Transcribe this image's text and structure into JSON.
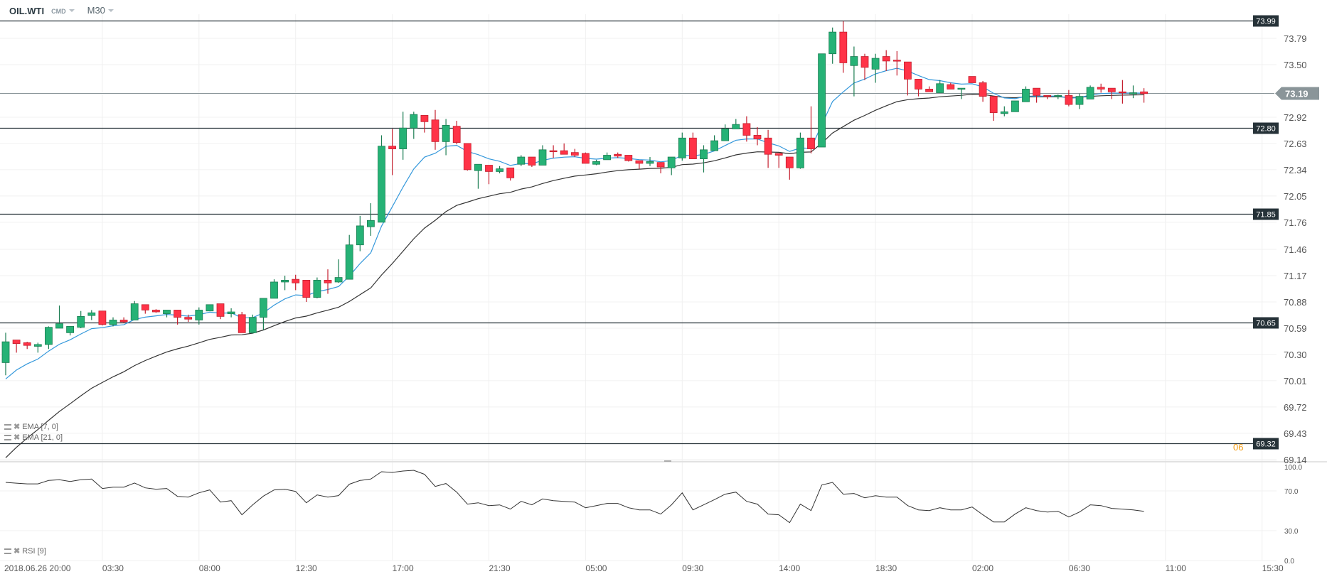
{
  "header": {
    "symbol": "OIL.WTI",
    "market": "CMD",
    "timeframe": "M30"
  },
  "indicators": [
    {
      "label": "EMA  [7, 0]",
      "color": "#3498db"
    },
    {
      "label": "EMA  [21, 0]",
      "color": "#333333"
    },
    {
      "label": "RSI  [9]",
      "color": "#333333"
    }
  ],
  "countdown": "06",
  "colors": {
    "up": "#26b276",
    "up_border": "#1b7d52",
    "down": "#ff3347",
    "down_border": "#c4202f",
    "level_line": "#263238",
    "current_tag": "#8a9599",
    "grid": "#f0f0f0"
  },
  "chart_data": {
    "type": "candlestick",
    "symbol": "OIL.WTI",
    "timeframe": "M30",
    "ylim": [
      69.115,
      74.057
    ],
    "y_ticks": [
      "73.79",
      "73.50",
      "72.92",
      "72.63",
      "72.34",
      "72.05",
      "71.76",
      "71.46",
      "71.17",
      "70.88",
      "70.59",
      "70.30",
      "70.01",
      "69.72",
      "69.43",
      "69.14"
    ],
    "x_ticks": [
      {
        "label": "2018.06.26  20:00",
        "index": 0
      },
      {
        "label": "03:30",
        "index": 9
      },
      {
        "label": "08:00",
        "index": 18
      },
      {
        "label": "12:30",
        "index": 27
      },
      {
        "label": "17:00",
        "index": 36
      },
      {
        "label": "21:30",
        "index": 45
      },
      {
        "label": "05:00",
        "index": 54
      },
      {
        "label": "09:30",
        "index": 63
      },
      {
        "label": "14:00",
        "index": 72
      },
      {
        "label": "18:30",
        "index": 81
      },
      {
        "label": "02:00",
        "index": 90
      },
      {
        "label": "06:30",
        "index": 99
      },
      {
        "label": "11:00",
        "index": 108
      },
      {
        "label": "15:30",
        "index": 117
      }
    ],
    "current_price": "73.19",
    "levels": [
      "73.99",
      "72.80",
      "71.85",
      "70.65",
      "69.32"
    ],
    "ohlc_fields": [
      "open",
      "high",
      "low",
      "close"
    ],
    "candles": [
      [
        70.21,
        70.54,
        70.07,
        70.44
      ],
      [
        70.46,
        70.46,
        70.32,
        70.42
      ],
      [
        70.43,
        70.44,
        70.36,
        70.4
      ],
      [
        70.39,
        70.43,
        70.32,
        70.41
      ],
      [
        70.41,
        70.61,
        70.36,
        70.6
      ],
      [
        70.59,
        70.84,
        70.59,
        70.64
      ],
      [
        70.54,
        70.61,
        70.51,
        70.61
      ],
      [
        70.6,
        70.78,
        70.59,
        70.72
      ],
      [
        70.73,
        70.79,
        70.68,
        70.76
      ],
      [
        70.78,
        70.78,
        70.62,
        70.63
      ],
      [
        70.63,
        70.71,
        70.61,
        70.68
      ],
      [
        70.68,
        70.71,
        70.65,
        70.66
      ],
      [
        70.68,
        70.89,
        70.68,
        70.86
      ],
      [
        70.85,
        70.85,
        70.75,
        70.79
      ],
      [
        70.79,
        70.8,
        70.76,
        70.77
      ],
      [
        70.75,
        70.79,
        70.71,
        70.79
      ],
      [
        70.79,
        70.79,
        70.63,
        70.71
      ],
      [
        70.71,
        70.74,
        70.66,
        70.69
      ],
      [
        70.68,
        70.82,
        70.63,
        70.79
      ],
      [
        70.78,
        70.85,
        70.78,
        70.85
      ],
      [
        70.86,
        70.86,
        70.69,
        70.72
      ],
      [
        70.75,
        70.81,
        70.71,
        70.77
      ],
      [
        70.74,
        70.77,
        70.54,
        70.54
      ],
      [
        70.54,
        70.74,
        70.53,
        70.71
      ],
      [
        70.71,
        70.92,
        70.57,
        70.92
      ],
      [
        70.92,
        71.13,
        70.92,
        71.1
      ],
      [
        71.1,
        71.17,
        71.01,
        71.12
      ],
      [
        71.13,
        71.18,
        71.01,
        71.09
      ],
      [
        71.12,
        71.12,
        70.88,
        70.93
      ],
      [
        70.93,
        71.15,
        70.92,
        71.12
      ],
      [
        71.12,
        71.24,
        70.97,
        71.09
      ],
      [
        71.1,
        71.35,
        71.09,
        71.15
      ],
      [
        71.13,
        71.62,
        71.13,
        71.51
      ],
      [
        71.51,
        71.83,
        71.44,
        71.72
      ],
      [
        71.71,
        71.97,
        71.61,
        71.78
      ],
      [
        71.76,
        72.72,
        71.76,
        72.6
      ],
      [
        72.6,
        72.79,
        72.28,
        72.57
      ],
      [
        72.57,
        72.98,
        72.45,
        72.8
      ],
      [
        72.8,
        72.98,
        72.68,
        72.95
      ],
      [
        72.94,
        72.94,
        72.75,
        72.87
      ],
      [
        72.89,
        73.0,
        72.56,
        72.65
      ],
      [
        72.65,
        72.9,
        72.5,
        72.83
      ],
      [
        72.82,
        72.88,
        72.62,
        72.64
      ],
      [
        72.63,
        72.63,
        72.33,
        72.34
      ],
      [
        72.33,
        72.4,
        72.13,
        72.4
      ],
      [
        72.39,
        72.39,
        72.18,
        72.32
      ],
      [
        72.32,
        72.38,
        72.3,
        72.35
      ],
      [
        72.36,
        72.36,
        72.22,
        72.25
      ],
      [
        72.4,
        72.5,
        72.38,
        72.48
      ],
      [
        72.48,
        72.48,
        72.37,
        72.39
      ],
      [
        72.39,
        72.61,
        72.39,
        72.56
      ],
      [
        72.55,
        72.61,
        72.47,
        72.54
      ],
      [
        72.55,
        72.63,
        72.51,
        72.51
      ],
      [
        72.53,
        72.57,
        72.48,
        72.5
      ],
      [
        72.52,
        72.53,
        72.41,
        72.41
      ],
      [
        72.4,
        72.45,
        72.39,
        72.43
      ],
      [
        72.45,
        72.53,
        72.45,
        72.5
      ],
      [
        72.51,
        72.53,
        72.47,
        72.49
      ],
      [
        72.5,
        72.5,
        72.43,
        72.44
      ],
      [
        72.44,
        72.44,
        72.35,
        72.41
      ],
      [
        72.41,
        72.48,
        72.38,
        72.43
      ],
      [
        72.42,
        72.42,
        72.3,
        72.37
      ],
      [
        72.36,
        72.48,
        72.28,
        72.48
      ],
      [
        72.47,
        72.75,
        72.44,
        72.69
      ],
      [
        72.69,
        72.75,
        72.46,
        72.46
      ],
      [
        72.46,
        72.61,
        72.31,
        72.56
      ],
      [
        72.55,
        72.72,
        72.55,
        72.66
      ],
      [
        72.66,
        72.84,
        72.66,
        72.79
      ],
      [
        72.79,
        72.9,
        72.79,
        72.84
      ],
      [
        72.85,
        72.93,
        72.65,
        72.72
      ],
      [
        72.72,
        72.81,
        72.61,
        72.68
      ],
      [
        72.69,
        72.78,
        72.36,
        72.51
      ],
      [
        72.52,
        72.52,
        72.36,
        72.5
      ],
      [
        72.48,
        72.48,
        72.23,
        72.36
      ],
      [
        72.36,
        72.75,
        72.35,
        72.69
      ],
      [
        72.69,
        73.04,
        72.52,
        72.57
      ],
      [
        72.59,
        73.62,
        72.59,
        73.62
      ],
      [
        73.62,
        73.91,
        73.51,
        73.86
      ],
      [
        73.86,
        73.98,
        73.41,
        73.52
      ],
      [
        73.49,
        73.7,
        73.15,
        73.59
      ],
      [
        73.59,
        73.62,
        73.33,
        73.47
      ],
      [
        73.45,
        73.62,
        73.3,
        73.57
      ],
      [
        73.59,
        73.66,
        73.43,
        73.54
      ],
      [
        73.55,
        73.65,
        73.38,
        73.54
      ],
      [
        73.53,
        73.53,
        73.16,
        73.34
      ],
      [
        73.34,
        73.34,
        73.15,
        73.23
      ],
      [
        73.23,
        73.26,
        73.2,
        73.2
      ],
      [
        73.19,
        73.33,
        73.19,
        73.29
      ],
      [
        73.28,
        73.3,
        73.23,
        73.23
      ],
      [
        73.23,
        73.24,
        73.12,
        73.24
      ],
      [
        73.37,
        73.37,
        73.3,
        73.3
      ],
      [
        73.3,
        73.32,
        73.09,
        73.15
      ],
      [
        73.15,
        73.15,
        72.88,
        72.97
      ],
      [
        72.96,
        73.04,
        72.93,
        72.98
      ],
      [
        72.98,
        73.1,
        72.98,
        73.1
      ],
      [
        73.09,
        73.26,
        73.09,
        73.23
      ],
      [
        73.24,
        73.24,
        73.08,
        73.16
      ],
      [
        73.16,
        73.16,
        73.12,
        73.15
      ],
      [
        73.15,
        73.17,
        73.12,
        73.16
      ],
      [
        73.16,
        73.22,
        73.04,
        73.06
      ],
      [
        73.06,
        73.18,
        73.01,
        73.15
      ],
      [
        73.12,
        73.27,
        73.12,
        73.25
      ],
      [
        73.25,
        73.29,
        73.19,
        73.23
      ],
      [
        73.24,
        73.24,
        73.12,
        73.2
      ],
      [
        73.2,
        73.33,
        73.07,
        73.19
      ],
      [
        73.19,
        73.27,
        73.13,
        73.19
      ],
      [
        73.2,
        73.24,
        73.08,
        73.18
      ]
    ],
    "ema7_first": 70.03,
    "ema21_first": 69.16,
    "rsi": {
      "period": 9,
      "ylim": [
        0,
        100
      ],
      "y_ticks": [
        "100.0",
        "70.0",
        "30.0",
        "0.0"
      ],
      "values": [
        78.6,
        77.8,
        77.1,
        77.1,
        80.5,
        81.2,
        79.5,
        81.2,
        81.9,
        72.4,
        73.8,
        73.8,
        77.9,
        73.1,
        71.7,
        72.4,
        64.5,
        63.8,
        68.1,
        71.0,
        58.8,
        60.2,
        46.0,
        56.0,
        64.8,
        71.0,
        71.7,
        69.5,
        58.1,
        66.0,
        63.8,
        65.3,
        76.7,
        80.5,
        81.9,
        89.3,
        88.6,
        90.0,
        90.7,
        86.7,
        74.5,
        77.4,
        68.8,
        56.7,
        58.1,
        55.2,
        55.9,
        51.7,
        59.5,
        56.0,
        61.9,
        60.2,
        59.5,
        58.8,
        53.1,
        55.2,
        57.4,
        57.4,
        53.1,
        50.9,
        50.9,
        46.7,
        56.0,
        68.1,
        50.9,
        56.0,
        61.2,
        66.7,
        68.8,
        59.5,
        56.7,
        46.7,
        46.0,
        38.1,
        56.7,
        50.2,
        75.9,
        78.6,
        66.7,
        67.4,
        63.1,
        65.2,
        63.8,
        63.8,
        55.2,
        50.9,
        50.2,
        53.1,
        50.9,
        50.9,
        53.8,
        46.0,
        38.8,
        38.8,
        46.7,
        53.1,
        50.2,
        48.8,
        49.5,
        43.8,
        48.8,
        56.0,
        55.2,
        52.4,
        51.7,
        50.9,
        49.5
      ]
    }
  }
}
